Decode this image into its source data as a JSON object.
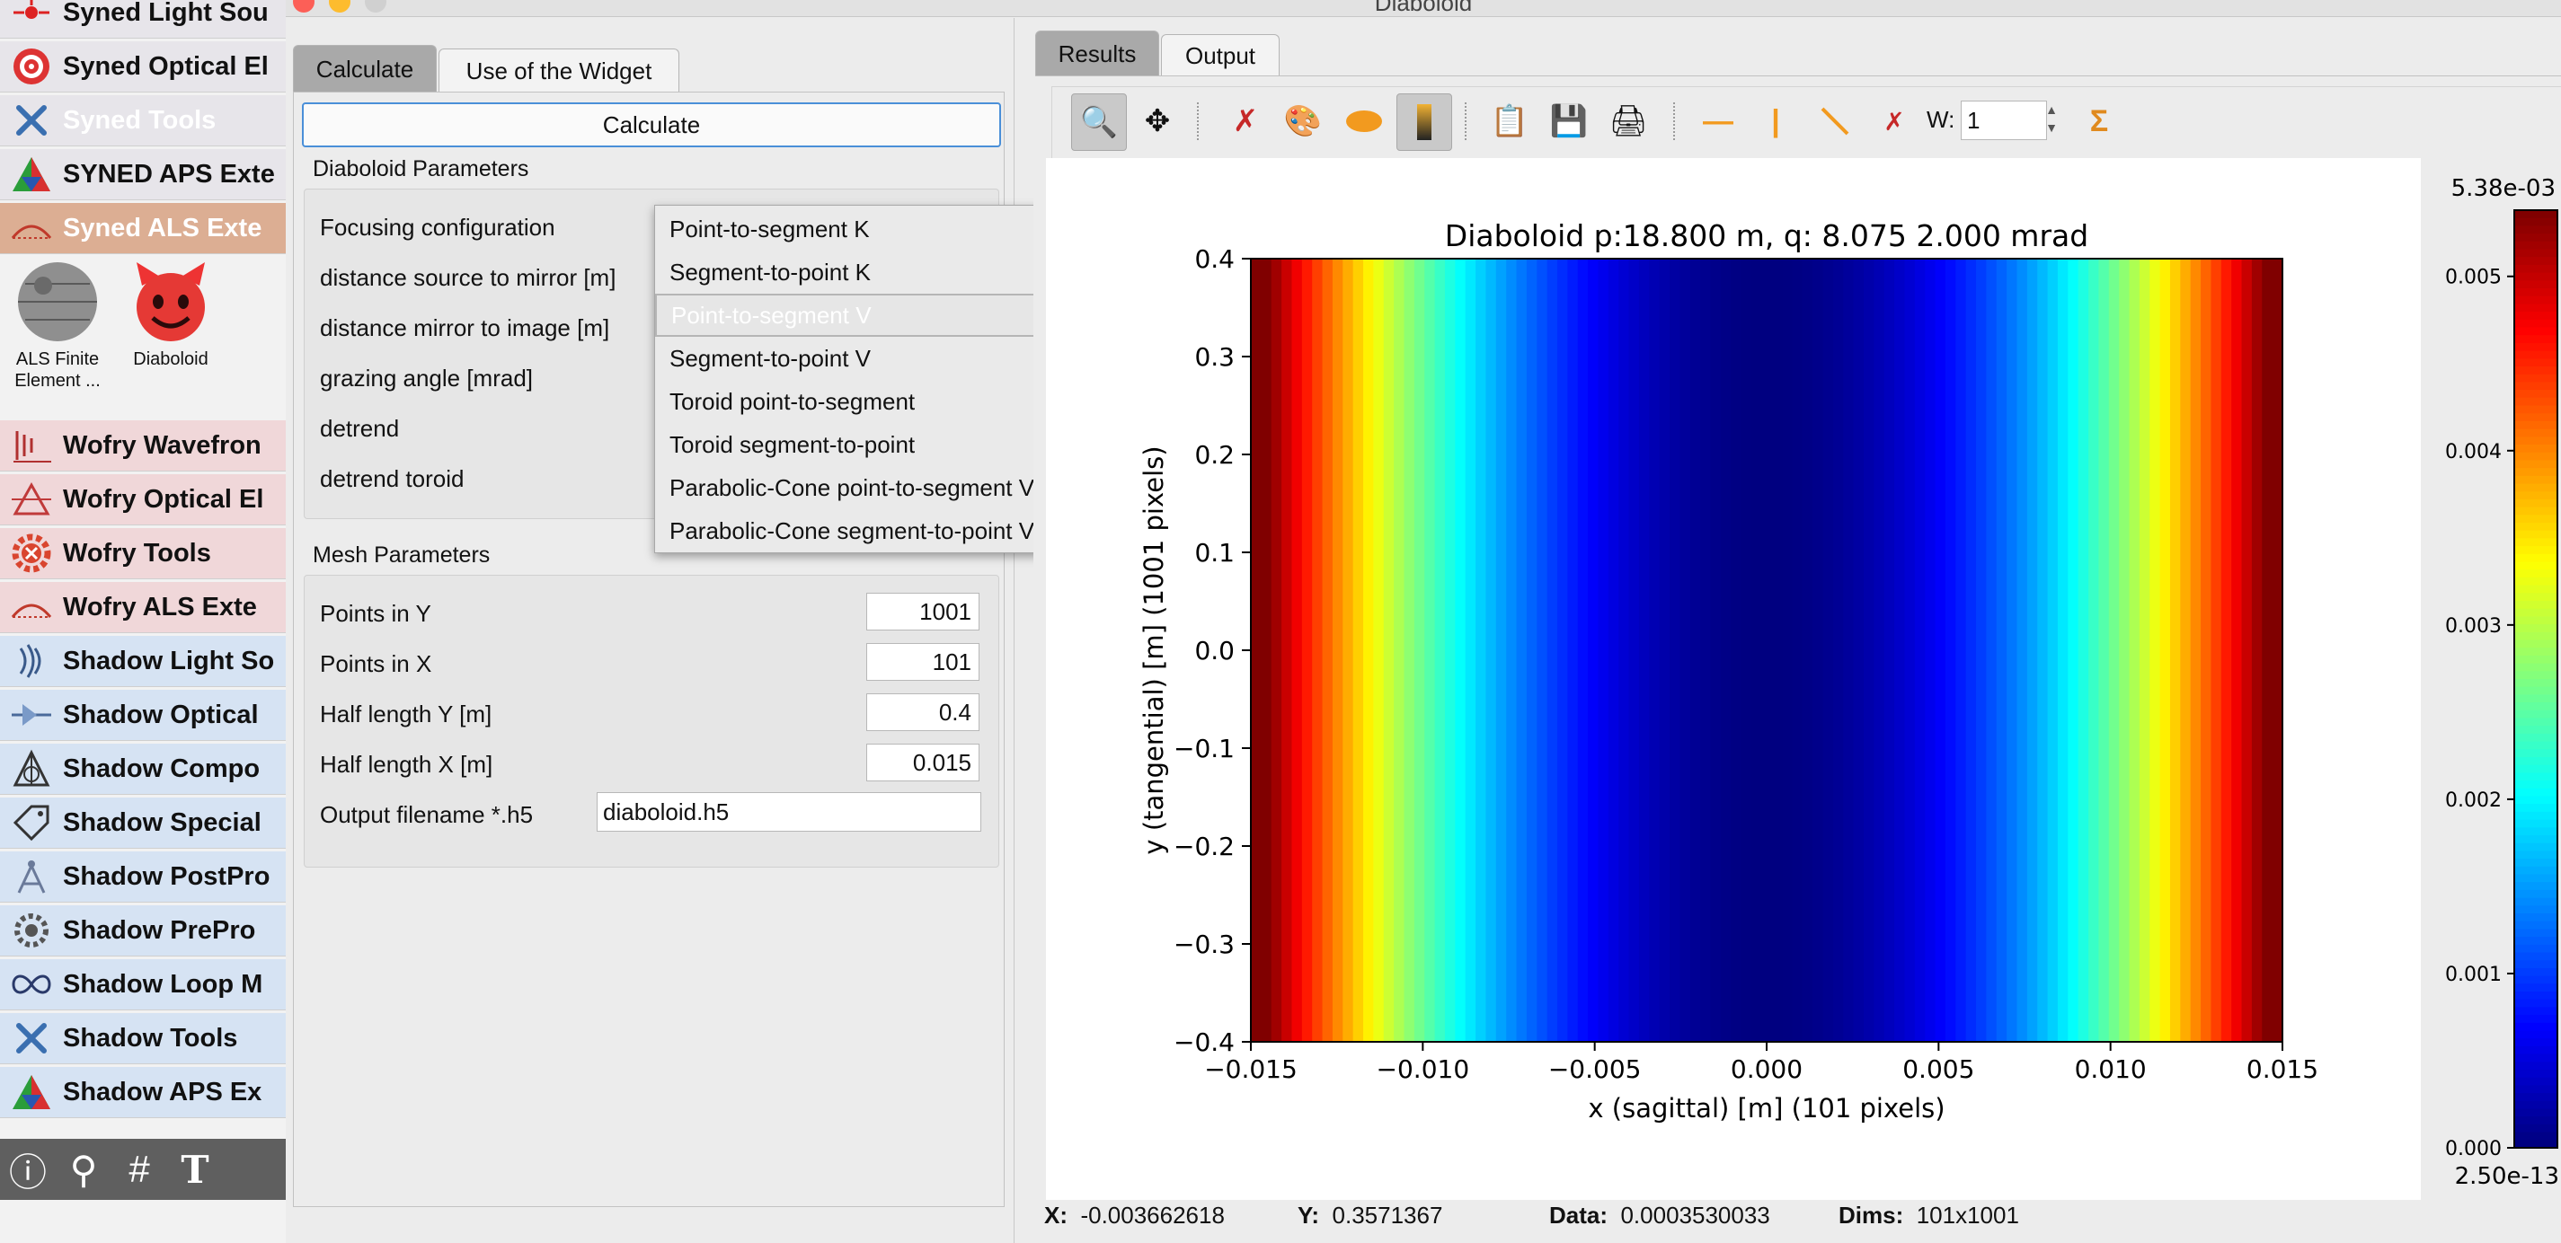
{
  "window": {
    "title": "Diaboloid"
  },
  "toolbox": {
    "categories": [
      {
        "label": "Syned Light Sou",
        "icon": "laser-icon"
      },
      {
        "label": "Syned Optical El",
        "icon": "target-icon"
      },
      {
        "label": "Syned Tools",
        "icon": "tools-icon"
      },
      {
        "label": "SYNED APS Exte",
        "icon": "aps-triangle-icon"
      },
      {
        "label": "Syned ALS Exte",
        "icon": "als-ring-icon"
      },
      {
        "label": "Wofry Wavefron",
        "icon": "wavefront-icon"
      },
      {
        "label": "Wofry Optical El",
        "icon": "optical-element-icon"
      },
      {
        "label": "Wofry Tools",
        "icon": "gear-icon"
      },
      {
        "label": "Wofry ALS Exte",
        "icon": "als-ring-icon"
      },
      {
        "label": "Shadow Light So",
        "icon": "light-waves-icon"
      },
      {
        "label": "Shadow Optical",
        "icon": "optical-beam-icon"
      },
      {
        "label": "Shadow Compo",
        "icon": "compound-prism-icon"
      },
      {
        "label": "Shadow Special",
        "icon": "tag-icon"
      },
      {
        "label": "Shadow PostPro",
        "icon": "compass-icon"
      },
      {
        "label": "Shadow PrePro",
        "icon": "cog-icon"
      },
      {
        "label": "Shadow Loop M",
        "icon": "infinity-icon"
      },
      {
        "label": "Shadow Tools",
        "icon": "tools-icon"
      },
      {
        "label": "Shadow APS Ex",
        "icon": "aps-triangle-icon"
      }
    ],
    "widgets": [
      {
        "label": "ALS Finite Element ...",
        "icon": "death-star-icon"
      },
      {
        "label": "Diaboloid",
        "icon": "devil-icon"
      }
    ],
    "bottom_icons": [
      "info-icon",
      "search-icon",
      "hash-icon",
      "text-icon"
    ]
  },
  "left": {
    "tabs": [
      "Calculate",
      "Use of the Widget"
    ],
    "calculate_button": "Calculate",
    "diaboloid_group": "Diaboloid Parameters",
    "params": [
      "Focusing configuration",
      "distance source to mirror [m]",
      "distance mirror to image [m]",
      "grazing angle [mrad]",
      "detrend",
      "detrend toroid"
    ],
    "mesh_group": "Mesh Parameters",
    "mesh": [
      {
        "label": "Points in Y",
        "value": "1001"
      },
      {
        "label": "Points in X",
        "value": "101"
      },
      {
        "label": "Half length Y [m]",
        "value": "0.4"
      },
      {
        "label": "Half length X [m]",
        "value": "0.015"
      }
    ],
    "output_label": "Output filename *.h5",
    "output_value": "diaboloid.h5"
  },
  "dropdown": {
    "options": [
      "Point-to-segment K",
      "Segment-to-point K",
      "Point-to-segment V",
      "Segment-to-point V",
      "Toroid point-to-segment",
      "Toroid segment-to-point",
      "Parabolic-Cone point-to-segment V",
      "Parabolic-Cone segment-to-point V"
    ],
    "highlighted": "Point-to-segment V"
  },
  "right": {
    "tabs": [
      "Results",
      "Output"
    ],
    "width_label": "W:",
    "width_value": "1"
  },
  "chart_data": {
    "type": "heatmap",
    "title": "Diaboloid p:18.800 m, q: 8.075  2.000 mrad",
    "xlabel": "x (sagittal) [m] (101 pixels)",
    "ylabel": "y (tangential) [m] (1001 pixels)",
    "xlim": [
      -0.015,
      0.015
    ],
    "ylim": [
      -0.4,
      0.4
    ],
    "xticks": [
      "−0.015",
      "−0.010",
      "−0.005",
      "0.000",
      "0.005",
      "0.010",
      "0.015"
    ],
    "yticks": [
      "0.4",
      "0.3",
      "0.2",
      "0.1",
      "0.0",
      "−0.1",
      "−0.2",
      "−0.3",
      "−0.4"
    ],
    "profile_note": "value varies along x only; approximately parabolic",
    "colorbar": {
      "max_label": "5.38e-03",
      "min_label": "2.50e-13",
      "ticks": [
        "0.005",
        "0.004",
        "0.003",
        "0.002",
        "0.001",
        "0.000"
      ],
      "colormap": "jet"
    }
  },
  "status": {
    "x_label": "X:",
    "x_value": "-0.003662618",
    "y_label": "Y:",
    "y_value": "0.3571367",
    "data_label": "Data:",
    "data_value": "0.0003530033",
    "dims_label": "Dims:",
    "dims_value": "101x1001"
  }
}
